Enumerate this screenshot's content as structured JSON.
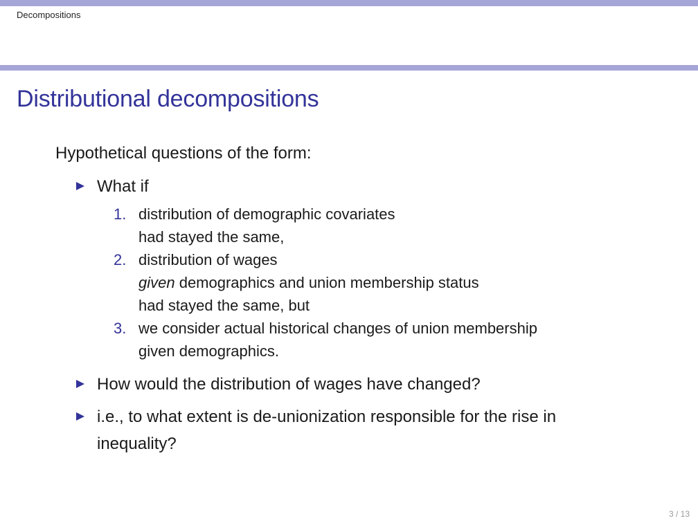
{
  "header": {
    "section": "Decompositions"
  },
  "frame": {
    "title": "Distributional decompositions"
  },
  "body": {
    "intro": "Hypothetical questions of the form:",
    "bullet1": "What if",
    "items": [
      {
        "num": "1.",
        "line1": "distribution of demographic covariates",
        "line2": "had stayed the same,"
      },
      {
        "num": "2.",
        "line1": "distribution of wages",
        "line2_italic": "given",
        "line2_rest": " demographics and union membership status",
        "line3": "had stayed the same, but"
      },
      {
        "num": "3.",
        "line1": "we consider actual historical changes of union membership",
        "line2": "given demographics."
      }
    ],
    "bullet2": "How would the distribution of wages have changed?",
    "bullet3_line1": "i.e., to what extent is de-unionization responsible for the rise in",
    "bullet3_line2": "inequality?"
  },
  "footer": {
    "page": "3 / 13"
  },
  "colors": {
    "accent": "#33339a",
    "bar": "#a5a5d8"
  }
}
